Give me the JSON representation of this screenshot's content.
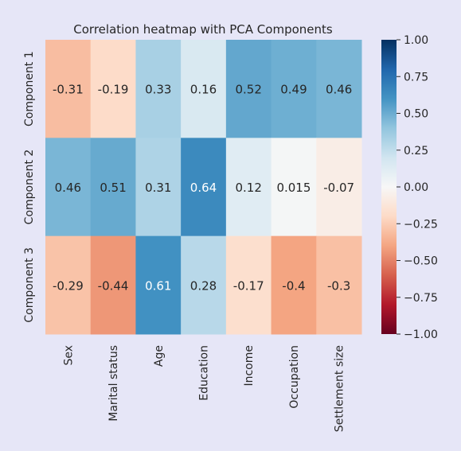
{
  "chart_data": {
    "type": "heatmap",
    "title": "Correlation heatmap with PCA Components",
    "rows": [
      "Component 1",
      "Component 2",
      "Component 3"
    ],
    "columns": [
      "Sex",
      "Marital status",
      "Age",
      "Education",
      "Income",
      "Occupation",
      "Settlement size"
    ],
    "values": [
      [
        -0.31,
        -0.19,
        0.33,
        0.16,
        0.52,
        0.49,
        0.46
      ],
      [
        0.46,
        0.51,
        0.31,
        0.64,
        0.12,
        0.015,
        -0.07
      ],
      [
        -0.29,
        -0.44,
        0.61,
        0.28,
        -0.17,
        -0.4,
        -0.3
      ]
    ],
    "cell_labels": [
      [
        "-0.31",
        "-0.19",
        "0.33",
        "0.16",
        "0.52",
        "0.49",
        "0.46"
      ],
      [
        "0.46",
        "0.51",
        "0.31",
        "0.64",
        "0.12",
        "0.015",
        "-0.07"
      ],
      [
        "-0.29",
        "-0.44",
        "0.61",
        "0.28",
        "-0.17",
        "-0.4",
        "-0.3"
      ]
    ],
    "colormap": "RdBu",
    "vmin": -1,
    "vmax": 1,
    "colorbar_ticks": [
      1.0,
      0.75,
      0.5,
      0.25,
      0.0,
      -0.25,
      -0.5,
      -0.75,
      -1.0
    ],
    "colorbar_tick_labels": [
      "1.00",
      "0.75",
      "0.50",
      "0.25",
      "0.00",
      "−0.25",
      "−0.50",
      "−0.75",
      "−1.00"
    ],
    "background_color": "#e6e6f7"
  }
}
